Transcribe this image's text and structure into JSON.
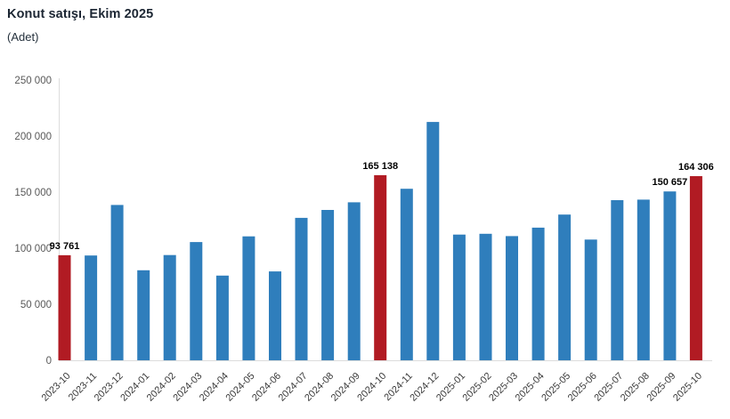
{
  "header": {
    "title": "Konut satışı, Ekim 2025",
    "subtitle": "(Adet)"
  },
  "chart_data": {
    "type": "bar",
    "title": "Konut satışı, Ekim 2025",
    "unit_label": "(Adet)",
    "categories": [
      "2023-10",
      "2023-11",
      "2023-12",
      "2024-01",
      "2024-02",
      "2024-03",
      "2024-04",
      "2024-05",
      "2024-06",
      "2024-07",
      "2024-08",
      "2024-09",
      "2024-10",
      "2024-11",
      "2024-12",
      "2025-01",
      "2025-02",
      "2025-03",
      "2025-04",
      "2025-05",
      "2025-06",
      "2025-07",
      "2025-08",
      "2025-09",
      "2025-10"
    ],
    "values": [
      93761,
      93514,
      138577,
      80308,
      93902,
      105476,
      75569,
      110588,
      79313,
      127088,
      134155,
      140919,
      165138,
      153014,
      212637,
      112173,
      112818,
      110795,
      118359,
      130025,
      107723,
      142858,
      143319,
      150657,
      164306
    ],
    "highlight_indices": [
      0,
      12,
      24
    ],
    "bar_labels": {
      "0": "93 761",
      "12": "165 138",
      "23": "150 657",
      "24": "164 306"
    },
    "y_ticks": [
      "0",
      "50 000",
      "100 000",
      "150 000",
      "200 000",
      "250 000"
    ],
    "ylim": [
      0,
      250000
    ],
    "xlabel": "",
    "ylabel": "",
    "grid": false,
    "legend": "none",
    "colors": {
      "bar": "#2f7ebc",
      "highlight": "#b11b23",
      "axis_line": "#dcdcdc",
      "y_tick_text": "#595959",
      "x_tick_text": "#3a3a3a",
      "bar_label_text": "#000000"
    }
  }
}
